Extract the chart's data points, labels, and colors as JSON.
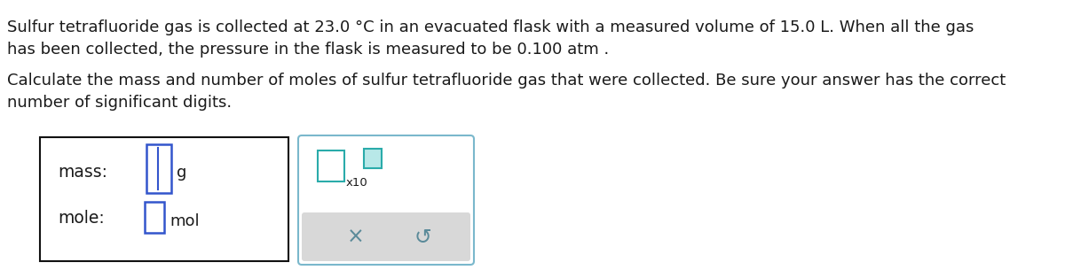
{
  "background_color": "#ffffff",
  "text_line1": "Sulfur tetrafluoride gas is collected at 23.0 °C in an evacuated flask with a measured volume of 15.0 L. When all the gas",
  "text_line2": "has been collected, the pressure in the flask is measured to be 0.100 atm .",
  "text_line3": "Calculate the mass and number of moles of sulfur tetrafluoride gas that were collected. Be sure your answer has the correct",
  "text_line4": "number of significant digits.",
  "label_mass": "mass:",
  "label_mole": "mole:",
  "unit_g": "g",
  "unit_mol": "mol",
  "x10_label": "x10",
  "cross_symbol": "×",
  "undo_symbol": "↺",
  "font_size_body": 13.0,
  "font_size_label": 13.5,
  "font_size_unit": 13.0,
  "font_size_small": 9.5,
  "font_family": "DejaVu Sans",
  "text_color": "#1a1a1a",
  "input_color_blue": "#3355cc",
  "input_color_teal": "#2aabaa",
  "input_color_teal_fill": "#b8e8e8",
  "box_border_color": "#111111",
  "box2_border_color": "#7ab8cc",
  "bottom_panel_color": "#d8d8d8",
  "icon_color": "#5a8a99",
  "cursor_color": "#3355cc"
}
